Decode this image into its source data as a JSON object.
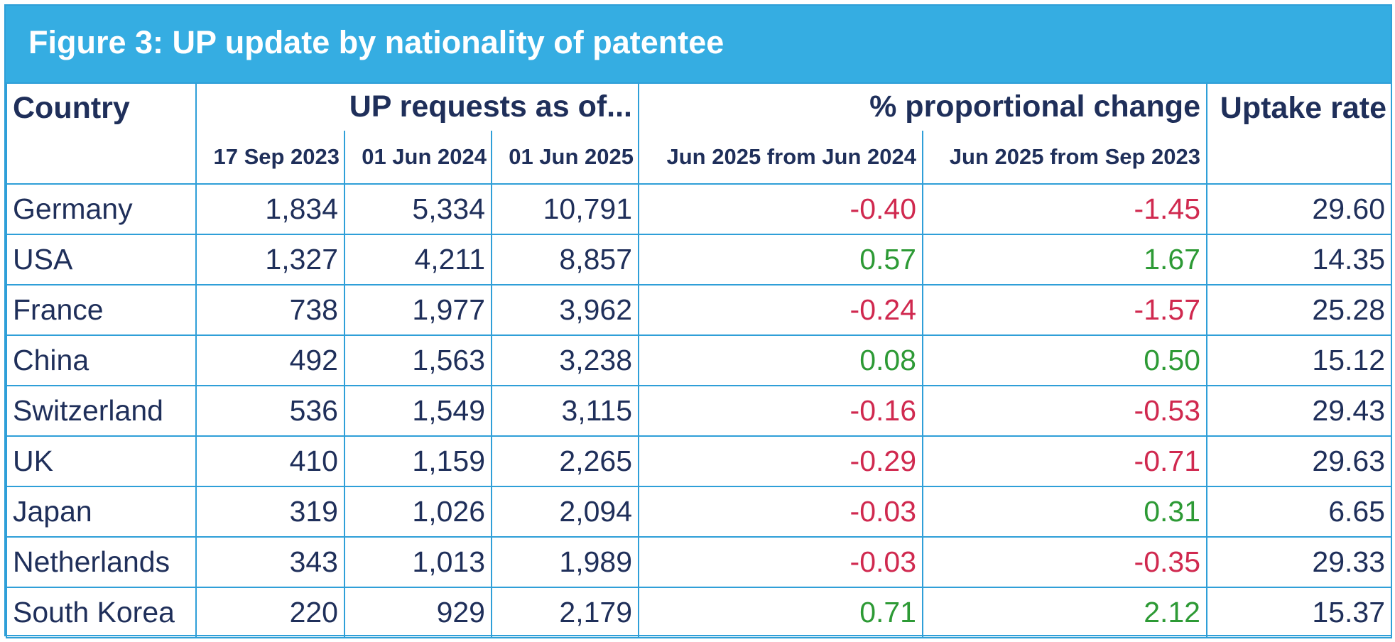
{
  "title": "Figure 3: UP update by nationality of patentee",
  "headers": {
    "country": "Country",
    "up_requests": "UP requests as of...",
    "pct_change": "% proportional change",
    "uptake": "Uptake rate",
    "sub": [
      "17 Sep 2023",
      "01 Jun 2024",
      "01 Jun 2025",
      "Jun 2025 from Jun 2024",
      "Jun 2025 from Sep 2023"
    ]
  },
  "colors": {
    "accent": "#35ade2",
    "negative": "#d0294f",
    "positive": "#2d9a35",
    "text": "#1f2f5a"
  },
  "rows": [
    {
      "country": "Germany",
      "sep2023": "1,834",
      "jun2024": "5,334",
      "jun2025": "10,791",
      "chg_jun2024": "-0.40",
      "chg_sep2023": "-1.45",
      "uptake": "29.60"
    },
    {
      "country": "USA",
      "sep2023": "1,327",
      "jun2024": "4,211",
      "jun2025": "8,857",
      "chg_jun2024": "0.57",
      "chg_sep2023": "1.67",
      "uptake": "14.35"
    },
    {
      "country": "France",
      "sep2023": "738",
      "jun2024": "1,977",
      "jun2025": "3,962",
      "chg_jun2024": "-0.24",
      "chg_sep2023": "-1.57",
      "uptake": "25.28"
    },
    {
      "country": "China",
      "sep2023": "492",
      "jun2024": "1,563",
      "jun2025": "3,238",
      "chg_jun2024": "0.08",
      "chg_sep2023": "0.50",
      "uptake": "15.12"
    },
    {
      "country": "Switzerland",
      "sep2023": "536",
      "jun2024": "1,549",
      "jun2025": "3,115",
      "chg_jun2024": "-0.16",
      "chg_sep2023": "-0.53",
      "uptake": "29.43"
    },
    {
      "country": "UK",
      "sep2023": "410",
      "jun2024": "1,159",
      "jun2025": "2,265",
      "chg_jun2024": "-0.29",
      "chg_sep2023": "-0.71",
      "uptake": "29.63"
    },
    {
      "country": "Japan",
      "sep2023": "319",
      "jun2024": "1,026",
      "jun2025": "2,094",
      "chg_jun2024": "-0.03",
      "chg_sep2023": "0.31",
      "uptake": "6.65"
    },
    {
      "country": "Netherlands",
      "sep2023": "343",
      "jun2024": "1,013",
      "jun2025": "1,989",
      "chg_jun2024": "-0.03",
      "chg_sep2023": "-0.35",
      "uptake": "29.33"
    },
    {
      "country": "South Korea",
      "sep2023": "220",
      "jun2024": "929",
      "jun2025": "2,179",
      "chg_jun2024": "0.71",
      "chg_sep2023": "2.12",
      "uptake": "15.37"
    }
  ]
}
